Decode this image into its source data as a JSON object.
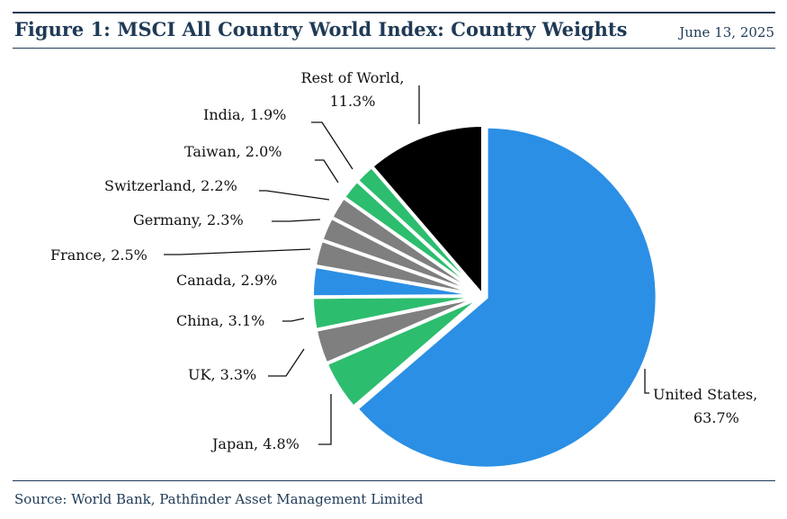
{
  "header": {
    "title": "Figure 1: MSCI All Country World Index: Country Weights",
    "date": "June 13, 2025"
  },
  "footer": {
    "source": "Source: World Bank, Pathfinder Asset Management Limited"
  },
  "colors": {
    "brand_navy": "#1f3a56",
    "blue": "#2b8fe5",
    "green": "#2dbd6e",
    "grey": "#7f7f7f",
    "black": "#000000"
  },
  "chart_data": {
    "type": "pie",
    "title": "Figure 1: MSCI All Country World Index: Country Weights",
    "unit": "%",
    "slices": [
      {
        "name": "United States",
        "value": 63.7,
        "color": "#2b8fe5",
        "label": "United States,",
        "value_label": "63.7%"
      },
      {
        "name": "Japan",
        "value": 4.8,
        "color": "#2dbd6e",
        "label": "Japan, 4.8%"
      },
      {
        "name": "UK",
        "value": 3.3,
        "color": "#7f7f7f",
        "label": "UK, 3.3%"
      },
      {
        "name": "China",
        "value": 3.1,
        "color": "#2dbd6e",
        "label": "China, 3.1%"
      },
      {
        "name": "Canada",
        "value": 2.9,
        "color": "#2b8fe5",
        "label": "Canada, 2.9%"
      },
      {
        "name": "France",
        "value": 2.5,
        "color": "#7f7f7f",
        "label": "France, 2.5%"
      },
      {
        "name": "Germany",
        "value": 2.3,
        "color": "#7f7f7f",
        "label": "Germany, 2.3%"
      },
      {
        "name": "Switzerland",
        "value": 2.2,
        "color": "#7f7f7f",
        "label": "Switzerland, 2.2%"
      },
      {
        "name": "Taiwan",
        "value": 2.0,
        "color": "#2dbd6e",
        "label": "Taiwan, 2.0%"
      },
      {
        "name": "India",
        "value": 1.9,
        "color": "#2dbd6e",
        "label": "India, 1.9%"
      },
      {
        "name": "Rest of World",
        "value": 11.3,
        "color": "#000000",
        "label": "Rest of World,",
        "value_label": "11.3%"
      }
    ]
  }
}
